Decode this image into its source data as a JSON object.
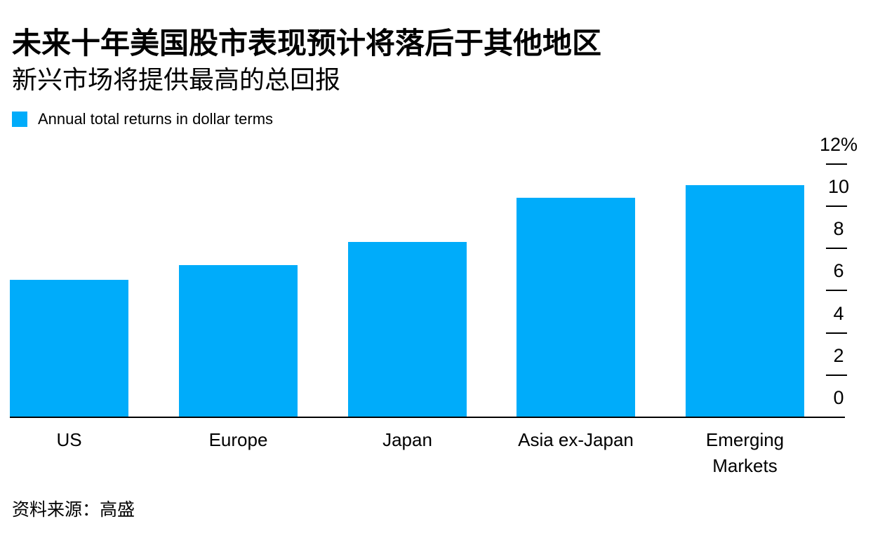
{
  "header": {
    "title": "未来十年美国股市表现预计将落后于其他地区",
    "subtitle": "新兴市场将提供最高的总回报"
  },
  "legend": {
    "label": "Annual total returns in dollar terms",
    "swatch_color": "#00ACFA"
  },
  "footer": {
    "source": "资料来源：高盛"
  },
  "chart_data": {
    "type": "bar",
    "title": "未来十年美国股市表现预计将落后于其他地区",
    "subtitle": "新兴市场将提供最高的总回报",
    "series_name": "Annual total returns in dollar terms",
    "categories": [
      "US",
      "Europe",
      "Japan",
      "Asia ex-Japan",
      "Emerging Markets"
    ],
    "values": [
      6.5,
      7.2,
      8.3,
      10.4,
      11.0
    ],
    "unit": "%",
    "xlabel": "",
    "ylabel": "",
    "ylim": [
      0,
      12
    ],
    "yticks": [
      0,
      2,
      4,
      6,
      8,
      10,
      12
    ],
    "ytick_labels": [
      "0",
      "2",
      "4",
      "6",
      "8",
      "10",
      "12%"
    ],
    "axis_side": "right",
    "grid": false,
    "legend_position": "top-left",
    "bar_color": "#00ACFA",
    "axis_color": "#000000",
    "source": "资料来源：高盛"
  }
}
